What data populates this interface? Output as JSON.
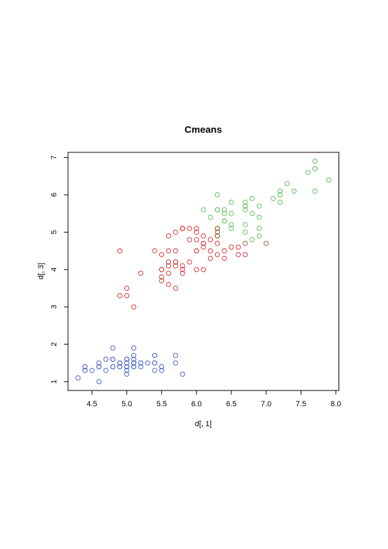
{
  "chart_data": {
    "type": "scatter",
    "title": "Cmeans",
    "x_label": "d[, 1]",
    "y_label": "d[, 3]",
    "xlim": [
      4.156,
      8.044
    ],
    "ylim": [
      0.764,
      7.136
    ],
    "xticks": [
      4.5,
      {
        "value": 5,
        "label": "5.0"
      },
      5.5,
      {
        "value": 6,
        "label": "6.0"
      },
      6.5,
      {
        "value": 7,
        "label": "7.0"
      },
      7.5,
      {
        "value": 8,
        "label": "8.0"
      }
    ],
    "yticks": [
      1,
      2,
      3,
      4,
      5,
      6,
      7
    ],
    "series": [
      {
        "color": "#4a66c8",
        "x": [
          5.1,
          4.9,
          4.7,
          4.6,
          5.0,
          5.4,
          4.6,
          5.0,
          4.4,
          4.9,
          5.4,
          4.8,
          4.8,
          4.3,
          5.8,
          5.7,
          5.4,
          5.1,
          5.7,
          5.1,
          5.4,
          5.1,
          4.6,
          5.1,
          4.8,
          5.0,
          5.0,
          5.2,
          5.2,
          4.7,
          4.8,
          5.4,
          5.2,
          5.5,
          4.9,
          5.0,
          5.5,
          4.9,
          4.4,
          5.1,
          5.0,
          4.5,
          4.4,
          5.0,
          5.1,
          4.8,
          5.1,
          4.6,
          5.3,
          5.0
        ],
        "y": [
          1.4,
          1.4,
          1.3,
          1.5,
          1.4,
          1.7,
          1.4,
          1.5,
          1.4,
          1.5,
          1.5,
          1.6,
          1.4,
          1.1,
          1.2,
          1.5,
          1.3,
          1.4,
          1.7,
          1.5,
          1.7,
          1.5,
          1.0,
          1.7,
          1.9,
          1.6,
          1.6,
          1.5,
          1.4,
          1.6,
          1.6,
          1.5,
          1.5,
          1.4,
          1.5,
          1.2,
          1.3,
          1.4,
          1.3,
          1.5,
          1.3,
          1.3,
          1.3,
          1.6,
          1.9,
          1.4,
          1.6,
          1.4,
          1.5,
          1.4
        ]
      },
      {
        "color": "#d9383a",
        "x": [
          6.4,
          5.5,
          6.5,
          5.7,
          6.3,
          4.9,
          6.6,
          5.2,
          5.0,
          5.9,
          6.0,
          6.1,
          5.6,
          6.7,
          5.6,
          5.8,
          6.2,
          5.6,
          5.9,
          6.1,
          6.1,
          6.4,
          6.6,
          6.0,
          5.7,
          5.5,
          5.5,
          5.8,
          6.0,
          5.4,
          6.0,
          6.3,
          5.6,
          5.5,
          5.5,
          6.1,
          5.8,
          5.0,
          5.6,
          5.7,
          5.7,
          6.2,
          5.1,
          5.7,
          5.8,
          4.9,
          5.7,
          5.8,
          6.0,
          5.6,
          6.2,
          6.1,
          6.0,
          5.8,
          5.9
        ],
        "y": [
          4.5,
          4.0,
          4.6,
          4.5,
          4.7,
          3.3,
          4.6,
          3.9,
          3.5,
          4.2,
          4.0,
          4.7,
          3.6,
          4.4,
          4.5,
          4.1,
          4.5,
          3.9,
          4.8,
          4.0,
          4.7,
          4.3,
          4.4,
          4.5,
          3.5,
          3.8,
          3.7,
          3.9,
          5.1,
          4.5,
          4.5,
          4.4,
          4.1,
          4.0,
          4.4,
          4.6,
          4.0,
          3.3,
          4.2,
          4.2,
          4.2,
          4.3,
          3.0,
          4.1,
          5.1,
          4.5,
          5.0,
          5.1,
          5.0,
          4.9,
          4.8,
          4.9,
          4.8,
          5.1,
          5.1
        ]
      },
      {
        "color": "#a0602a",
        "x": [
          7.0,
          6.7,
          6.3,
          6.3,
          6.3,
          6.3,
          6.3
        ],
        "y": [
          4.7,
          4.7,
          4.9,
          4.9,
          5.0,
          5.1,
          5.1
        ]
      },
      {
        "color": "#5ec45a",
        "x": [
          6.3,
          7.1,
          6.3,
          6.5,
          7.6,
          7.3,
          6.7,
          7.2,
          6.5,
          6.4,
          6.8,
          6.4,
          6.5,
          7.7,
          7.7,
          6.9,
          7.7,
          6.7,
          7.2,
          6.4,
          7.2,
          7.4,
          7.9,
          6.1,
          7.7,
          6.3,
          6.4,
          6.9,
          6.7,
          6.9,
          6.8,
          6.7,
          6.7,
          6.5,
          6.2,
          6.9,
          6.7,
          6.8
        ],
        "y": [
          6.0,
          5.9,
          5.6,
          5.8,
          6.6,
          6.3,
          5.8,
          6.1,
          5.1,
          5.3,
          5.5,
          5.3,
          5.5,
          6.7,
          6.9,
          5.7,
          6.7,
          5.7,
          6.0,
          5.6,
          5.8,
          6.1,
          6.4,
          5.6,
          6.1,
          5.6,
          5.5,
          5.4,
          5.6,
          5.1,
          5.9,
          5.7,
          5.2,
          5.2,
          5.4,
          4.9,
          5.0,
          4.8
        ]
      }
    ]
  }
}
